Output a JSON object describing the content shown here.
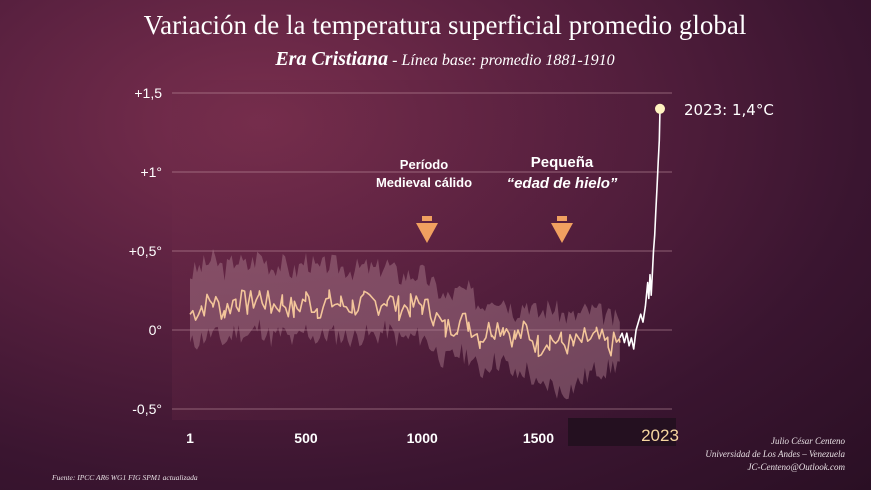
{
  "title": "Variación de la temperatura superficial promedio global",
  "subtitle": {
    "era": "Era Cristiana",
    "rest": " - Línea base: promedio 1881-1910"
  },
  "annotations": {
    "medieval_line1": "Período",
    "medieval_line2": "Medieval cálido",
    "ice_age_line1": "Pequeña",
    "ice_age_line2": "“edad de hielo”",
    "endpoint": "2023: 1,4°C"
  },
  "credits": {
    "author": "Julio César Centeno",
    "university": "Universidad de Los Andes – Venezuela",
    "email": "JC-Centeno@Outlook.com"
  },
  "source": "Fuente: IPCC AR6 WG1 FIG SPM1 actualizada",
  "colors": {
    "series": "#f3c59a",
    "modern": "#ffffff",
    "band": "#b08090",
    "grid": "#c89aa8",
    "arrow": "#f0a060",
    "endpoint_dot": "#fff3c0"
  },
  "chart_data": {
    "type": "line",
    "title": "Variación de la temperatura superficial promedio global",
    "xlabel": "",
    "ylabel": "",
    "xlim": [
      1,
      2023
    ],
    "ylim": [
      -0.55,
      1.55
    ],
    "x_ticks": [
      {
        "value": 1,
        "label": "1"
      },
      {
        "value": 500,
        "label": "500"
      },
      {
        "value": 1000,
        "label": "1000"
      },
      {
        "value": 1500,
        "label": "1500"
      },
      {
        "value": 2023,
        "label": "2023"
      }
    ],
    "y_ticks": [
      {
        "value": 1.5,
        "label": "+1,5"
      },
      {
        "value": 1.0,
        "label": "+1°"
      },
      {
        "value": 0.5,
        "label": "+0,5°"
      },
      {
        "value": 0.0,
        "label": "0°"
      },
      {
        "value": -0.5,
        "label": "-0,5°"
      }
    ],
    "grid": true,
    "series": [
      {
        "x": [
          1,
          50,
          100,
          150,
          200,
          250,
          300,
          350,
          400,
          450,
          500,
          550,
          600,
          650,
          700,
          750,
          800,
          850,
          900,
          950,
          1000,
          1050,
          1100,
          1150,
          1200,
          1250,
          1300,
          1350,
          1400,
          1450,
          1500,
          1550,
          1600,
          1650,
          1700,
          1750,
          1800,
          1850
        ],
        "values": [
          0.1,
          0.15,
          0.18,
          0.12,
          0.2,
          0.16,
          0.22,
          0.15,
          0.18,
          0.12,
          0.2,
          0.14,
          0.18,
          0.16,
          0.15,
          0.17,
          0.16,
          0.2,
          0.14,
          0.15,
          0.16,
          0.1,
          0.0,
          0.05,
          0.05,
          -0.05,
          0.02,
          0.03,
          -0.05,
          0.0,
          -0.1,
          -0.05,
          -0.08,
          -0.1,
          -0.06,
          -0.05,
          -0.1,
          -0.08
        ],
        "band_low": [
          -0.1,
          -0.05,
          -0.02,
          -0.08,
          0.0,
          -0.04,
          0.02,
          -0.05,
          -0.02,
          -0.08,
          0.0,
          -0.06,
          -0.02,
          -0.04,
          -0.05,
          -0.03,
          -0.04,
          0.0,
          -0.06,
          -0.05,
          -0.04,
          -0.12,
          -0.2,
          -0.15,
          -0.16,
          -0.27,
          -0.2,
          -0.2,
          -0.3,
          -0.25,
          -0.38,
          -0.34,
          -0.4,
          -0.36,
          -0.3,
          -0.25,
          -0.25,
          -0.2
        ],
        "band_high": [
          0.35,
          0.4,
          0.45,
          0.38,
          0.45,
          0.4,
          0.48,
          0.4,
          0.42,
          0.36,
          0.45,
          0.38,
          0.42,
          0.4,
          0.38,
          0.4,
          0.38,
          0.42,
          0.34,
          0.35,
          0.36,
          0.28,
          0.2,
          0.24,
          0.25,
          0.15,
          0.22,
          0.2,
          0.12,
          0.18,
          0.1,
          0.15,
          0.1,
          0.08,
          0.12,
          0.12,
          0.08,
          0.05
        ]
      },
      {
        "x": [
          1850,
          1860,
          1870,
          1880,
          1890,
          1900,
          1910,
          1920,
          1930,
          1940,
          1950,
          1960,
          1970,
          1975,
          1980,
          1985,
          1990,
          1995,
          2000,
          2005,
          2010,
          2015,
          2020,
          2023
        ],
        "values": [
          -0.05,
          -0.02,
          -0.08,
          -0.02,
          -0.1,
          -0.05,
          -0.12,
          0.0,
          0.05,
          0.1,
          0.05,
          0.15,
          0.3,
          0.2,
          0.35,
          0.22,
          0.35,
          0.5,
          0.6,
          0.75,
          0.9,
          1.05,
          1.2,
          1.4
        ]
      }
    ],
    "highlight": {
      "x": 2023,
      "y": 1.4,
      "label": "2023: 1,4°C"
    },
    "arrows_at_x": [
      1000,
      1600
    ]
  }
}
